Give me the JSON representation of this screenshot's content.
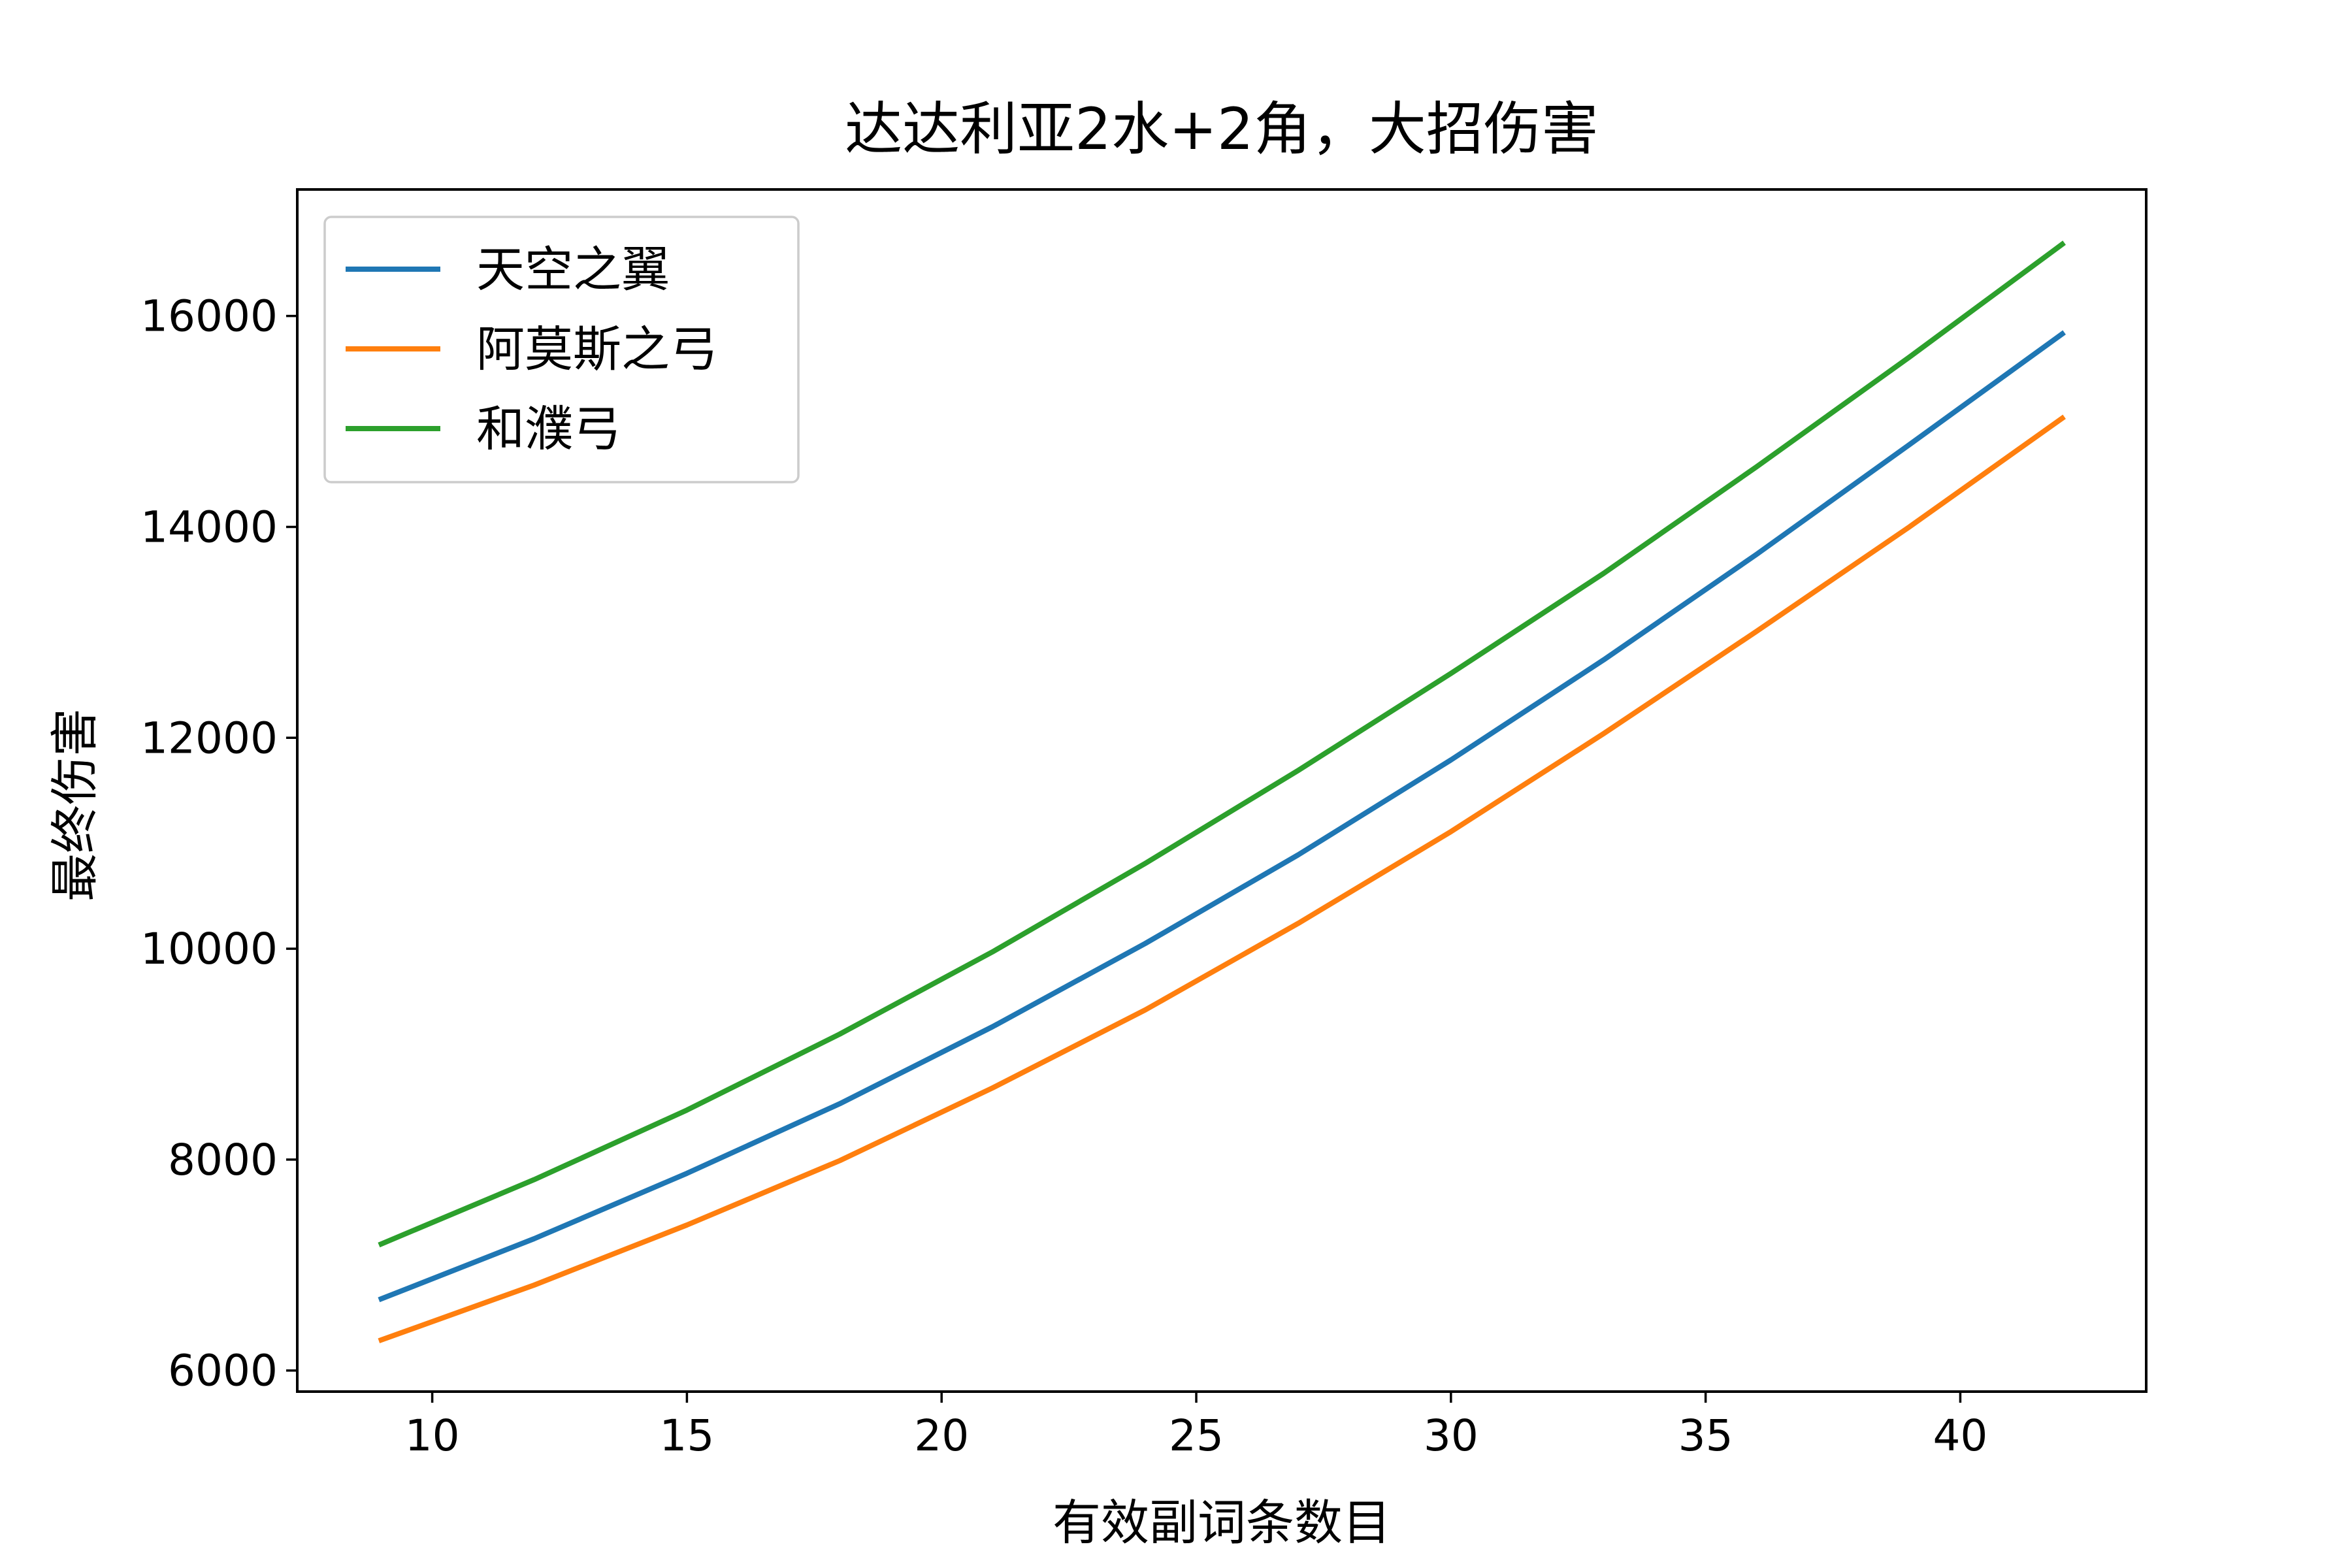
{
  "chart_data": {
    "type": "line",
    "title": "达达利亚2水+2角，大招伤害",
    "xlabel": "有效副词条数目",
    "ylabel": "最终伤害",
    "x": [
      9,
      12,
      15,
      18,
      21,
      24,
      27,
      30,
      33,
      36,
      39,
      42
    ],
    "xlim": [
      7.35,
      43.65
    ],
    "ylim": [
      5800,
      17200
    ],
    "xticks": [
      10,
      15,
      20,
      25,
      30,
      35,
      40
    ],
    "yticks": [
      6000,
      8000,
      10000,
      12000,
      14000,
      16000
    ],
    "grid": false,
    "legend_position": "upper left",
    "series": [
      {
        "name": "天空之翼",
        "color": "#1f77b4",
        "values": [
          6680,
          7250,
          7870,
          8530,
          9260,
          10050,
          10890,
          11790,
          12740,
          13740,
          14780,
          15830
        ]
      },
      {
        "name": "阿莫斯之弓",
        "color": "#ff7f0e",
        "values": [
          6290,
          6810,
          7380,
          7990,
          8680,
          9420,
          10240,
          11110,
          12040,
          13010,
          14000,
          15030
        ]
      },
      {
        "name": "和濮弓",
        "color": "#2ca02c",
        "values": [
          7200,
          7810,
          8470,
          9190,
          9970,
          10810,
          11690,
          12610,
          13560,
          14570,
          15610,
          16680
        ]
      }
    ]
  }
}
